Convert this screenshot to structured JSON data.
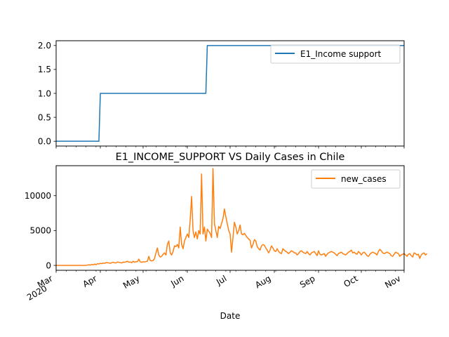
{
  "chart_data": [
    {
      "type": "line",
      "title": "",
      "xlabel": "",
      "ylabel": "",
      "ylim": [
        -0.1,
        2.1
      ],
      "yticks": [
        0.0,
        0.5,
        1.0,
        1.5,
        2.0
      ],
      "ytick_labels": [
        "0.0",
        "0.5",
        "1.0",
        "1.5",
        "2.0"
      ],
      "grid": false,
      "legend_position": "top-right",
      "series": [
        {
          "name": "E1_Income support",
          "color": "#1f77b4",
          "points": [
            {
              "x": "2020-03-01",
              "y": 0
            },
            {
              "x": "2020-03-31",
              "y": 0
            },
            {
              "x": "2020-04-01",
              "y": 1
            },
            {
              "x": "2020-06-14",
              "y": 1
            },
            {
              "x": "2020-06-15",
              "y": 2
            },
            {
              "x": "2020-10-31",
              "y": 2
            }
          ]
        }
      ]
    },
    {
      "type": "line",
      "title": "E1_INCOME_SUPPORT VS Daily Cases in Chile",
      "xlabel": "Date",
      "ylabel": "",
      "ylim": [
        -700,
        14300
      ],
      "yticks": [
        0,
        5000,
        10000
      ],
      "ytick_labels": [
        "0",
        "5000",
        "10000"
      ],
      "xlim": [
        "2020-03-01",
        "2020-10-31"
      ],
      "xticks": [
        "2020-03-01",
        "2020-04-01",
        "2020-05-01",
        "2020-06-01",
        "2020-07-01",
        "2020-08-01",
        "2020-09-01",
        "2020-10-01",
        "2020-11-01"
      ],
      "xtick_labels": [
        "Mar\n2020",
        "Apr",
        "May",
        "Jun",
        "Jul",
        "Aug",
        "Sep",
        "Oct",
        "Nov"
      ],
      "grid": false,
      "legend_position": "top-right",
      "series": [
        {
          "name": "new_cases",
          "color": "#ff7f0e",
          "start_date": "2020-03-01",
          "values": [
            0,
            0,
            0,
            0,
            0,
            0,
            0,
            0,
            0,
            0,
            0,
            0,
            0,
            0,
            0,
            0,
            0,
            0,
            0,
            0,
            0,
            10,
            50,
            100,
            40,
            150,
            80,
            200,
            100,
            250,
            200,
            300,
            250,
            350,
            300,
            400,
            380,
            350,
            300,
            400,
            450,
            380,
            350,
            500,
            450,
            400,
            350,
            480,
            450,
            500,
            600,
            450,
            500,
            400,
            600,
            450,
            550,
            550,
            900,
            500,
            450,
            520,
            500,
            550,
            600,
            1300,
            700,
            650,
            700,
            1000,
            1800,
            2500,
            1500,
            1200,
            1300,
            1600,
            1800,
            1500,
            3000,
            3500,
            1800,
            1500,
            2000,
            2800,
            2700,
            3000,
            2500,
            5500,
            3000,
            2400,
            3500,
            4000,
            4500,
            4000,
            6500,
            9900,
            5000,
            4000,
            4800,
            3800,
            5000,
            4500,
            13100,
            4500,
            5500,
            3500,
            5200,
            4900,
            4600,
            4000,
            13900,
            6000,
            5000,
            4000,
            5600,
            5300,
            6000,
            6700,
            8100,
            7000,
            6000,
            5000,
            4500,
            1900,
            4000,
            6200,
            5500,
            4500,
            5000,
            5800,
            4500,
            4400,
            4600,
            4300,
            4000,
            3800,
            3600,
            2500,
            3000,
            3700,
            3500,
            2700,
            2400,
            2200,
            2800,
            3000,
            2900,
            2500,
            2200,
            1800,
            2200,
            2800,
            2500,
            2100,
            2000,
            2400,
            2000,
            1800,
            1700,
            2400,
            2200,
            2000,
            1900,
            1700,
            1900,
            2100,
            2000,
            1800,
            1800,
            1500,
            1700,
            2000,
            2100,
            1900,
            1800,
            1700,
            2000,
            1700,
            1500,
            1800,
            1900,
            2000,
            1700,
            1400,
            2100,
            1600,
            1500,
            1600,
            1700,
            1300,
            1600,
            1800,
            1900,
            2000,
            1900,
            1800,
            1600,
            1400,
            1700,
            1800,
            1900,
            1700,
            1600,
            1500,
            1700,
            1900,
            2000,
            2200,
            1800,
            1900,
            1700,
            1600,
            2000,
            1800,
            1500,
            1800,
            1900,
            1700,
            1400,
            1300,
            1600,
            1800,
            1900,
            1800,
            1700,
            1500,
            2000,
            2300,
            2100,
            1800,
            1700,
            1800,
            1900,
            1800,
            1700,
            1400,
            1300,
            1600,
            1900,
            1800,
            1700,
            1300,
            1500,
            1600,
            1700,
            1500,
            1300,
            1600,
            1700,
            1400,
            1200,
            1800,
            1700,
            1500,
            1600,
            1000,
            1500,
            1700,
            1800,
            1500,
            1700
          ]
        }
      ]
    }
  ]
}
